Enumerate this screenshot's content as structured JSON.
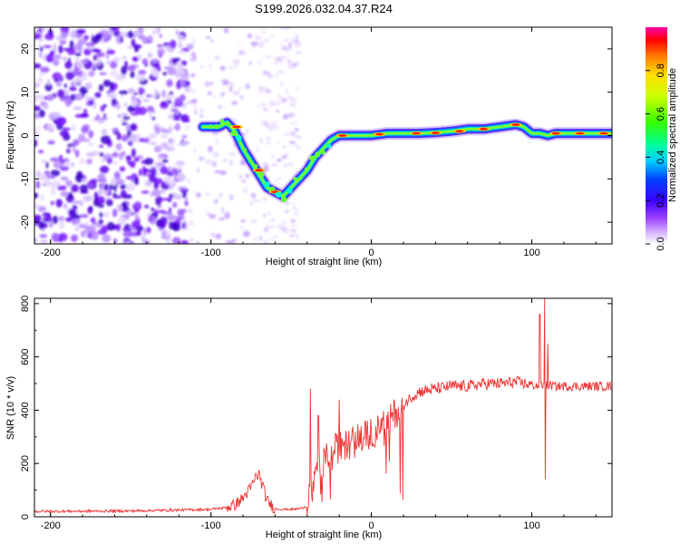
{
  "title": "S199.2026.032.04.37.R24",
  "chart_data": [
    {
      "type": "heatmap",
      "name": "spectrogram",
      "xlabel": "Height of straight line (km)",
      "ylabel": "Frequency (Hz)",
      "xlim": [
        -210,
        150
      ],
      "ylim": [
        -25,
        25
      ],
      "xticks": [
        -200,
        -100,
        0,
        100
      ],
      "yticks": [
        -20,
        -10,
        0,
        10,
        20
      ],
      "colorbar": {
        "label": "Normalized spectral amplitude",
        "range": [
          0,
          1
        ],
        "ticks": [
          "0.0",
          "0.2",
          "0.4",
          "0.6",
          "0.8"
        ]
      },
      "ridge": {
        "x": [
          -105,
          -95,
          -90,
          -85,
          -80,
          -75,
          -70,
          -65,
          -60,
          -55,
          -50,
          -45,
          -40,
          -35,
          -30,
          -25,
          -20,
          -10,
          0,
          10,
          20,
          30,
          40,
          50,
          60,
          70,
          80,
          90,
          95,
          100,
          105,
          110,
          115,
          120,
          130,
          140,
          150
        ],
        "y": [
          2,
          2,
          3,
          1,
          -3,
          -6,
          -9,
          -12,
          -13,
          -14,
          -12,
          -10,
          -8,
          -5,
          -3,
          -1,
          0,
          0,
          0,
          0.5,
          0.5,
          0.5,
          0.7,
          1,
          1.5,
          1.5,
          2,
          2.5,
          2,
          0.5,
          0.5,
          0,
          0.5,
          0.5,
          0.5,
          0.5,
          0.5
        ]
      }
    },
    {
      "type": "line",
      "name": "snr",
      "xlabel": "Height of straight line (km)",
      "ylabel": "SNR (10 * v/v)",
      "xlim": [
        -210,
        150
      ],
      "ylim": [
        0,
        820
      ],
      "xticks": [
        -200,
        -100,
        0,
        100
      ],
      "yticks": [
        0,
        200,
        400,
        600,
        800
      ],
      "color": "#ee3333",
      "envelope": {
        "x": [
          -210,
          -150,
          -100,
          -90,
          -85,
          -80,
          -75,
          -72,
          -70,
          -65,
          -60,
          -55,
          -50,
          -45,
          -40,
          -35,
          -30,
          -25,
          -20,
          -15,
          -10,
          -5,
          0,
          5,
          10,
          15,
          20,
          25,
          30,
          40,
          50,
          60,
          70,
          80,
          90,
          100,
          105,
          110,
          115,
          120,
          130,
          140,
          150
        ],
        "y": [
          20,
          22,
          28,
          35,
          45,
          70,
          110,
          150,
          160,
          60,
          30,
          28,
          28,
          30,
          40,
          130,
          200,
          250,
          260,
          270,
          290,
          300,
          310,
          330,
          360,
          390,
          420,
          450,
          470,
          480,
          490,
          490,
          500,
          500,
          505,
          495,
          490,
          495,
          490,
          490,
          490,
          490,
          490
        ]
      },
      "spikes": [
        {
          "x": -38,
          "y": 480
        },
        {
          "x": -33,
          "y": 380
        },
        {
          "x": -20,
          "y": 440
        },
        {
          "x": 105,
          "y": 760
        },
        {
          "x": 108,
          "y": 820
        },
        {
          "x": 108.5,
          "y": 140
        },
        {
          "x": 110,
          "y": 650
        }
      ]
    }
  ]
}
